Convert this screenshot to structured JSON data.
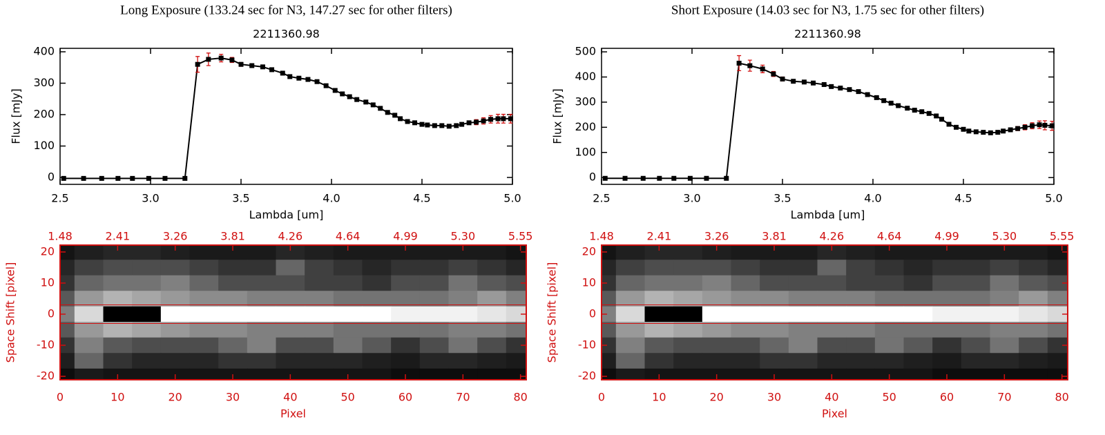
{
  "chart_data": [
    {
      "type": "line",
      "heading": "Long Exposure (133.24 sec for N3, 147.27 sec for other filters)",
      "title": "2211360.98",
      "xlabel": "Lambda [um]",
      "ylabel": "Flux [mJy]",
      "xlim": [
        2.5,
        5.0
      ],
      "ylim": [
        -22,
        411
      ],
      "xticks": [
        2.5,
        {
          "value": 3,
          "label": "3.0"
        },
        3.5,
        {
          "value": 4,
          "label": "4.0"
        },
        4.5,
        {
          "value": 5,
          "label": "5.0"
        }
      ],
      "yticks": [
        0,
        100,
        200,
        300,
        400
      ],
      "x": [
        2.52,
        2.63,
        2.73,
        2.82,
        2.9,
        2.99,
        3.08,
        3.19,
        3.26,
        3.32,
        3.39,
        3.45,
        3.5,
        3.56,
        3.62,
        3.67,
        3.73,
        3.77,
        3.82,
        3.87,
        3.92,
        3.97,
        4.02,
        4.06,
        4.1,
        4.14,
        4.19,
        4.23,
        4.27,
        4.31,
        4.35,
        4.38,
        4.42,
        4.46,
        4.5,
        4.53,
        4.57,
        4.61,
        4.65,
        4.69,
        4.72,
        4.76,
        4.8,
        4.84,
        4.88,
        4.92,
        4.95,
        4.99
      ],
      "series": [
        {
          "color": "#000000",
          "error_color": "#d01010",
          "values": [
            -3,
            -3,
            -3,
            -3,
            -3,
            -3,
            -3,
            -3,
            360,
            376,
            380,
            374,
            360,
            356,
            352,
            343,
            332,
            321,
            316,
            312,
            305,
            292,
            277,
            266,
            257,
            248,
            240,
            231,
            220,
            207,
            198,
            187,
            178,
            174,
            169,
            167,
            165,
            165,
            163,
            165,
            169,
            174,
            176,
            180,
            185,
            187,
            187,
            187
          ],
          "errors": [
            3,
            3,
            3,
            3,
            3,
            3,
            3,
            3,
            25,
            20,
            12,
            8,
            6,
            5,
            5,
            5,
            5,
            5,
            5,
            5,
            5,
            5,
            5,
            5,
            5,
            5,
            5,
            5,
            5,
            5,
            5,
            5,
            5,
            5,
            5,
            5,
            5,
            5,
            5,
            5,
            5,
            5,
            8,
            10,
            12,
            14,
            14,
            14
          ]
        }
      ]
    },
    {
      "type": "heatmap",
      "xlabel": "Pixel",
      "ylabel": "Space Shift [pixel]",
      "color": "#d01010",
      "xlim": [
        0,
        81
      ],
      "ylim": [
        -21.1,
        22.2
      ],
      "xticks": [
        0,
        10,
        20,
        30,
        40,
        50,
        60,
        70,
        80
      ],
      "yticks": [
        -20,
        -10,
        0,
        10,
        20
      ],
      "x2ticks": [
        1.48,
        2.41,
        3.26,
        3.81,
        4.26,
        4.64,
        4.99,
        {
          "value": 5.3,
          "label": "5.30"
        },
        5.55
      ],
      "hlines": [
        3,
        -3
      ],
      "x": [
        0,
        5,
        10,
        15,
        20,
        25,
        30,
        35,
        40,
        45,
        50,
        55,
        60,
        65,
        70,
        75,
        80
      ],
      "y": [
        20,
        15,
        10,
        5,
        0,
        -5,
        -10,
        -15,
        -20
      ],
      "z": [
        [
          0.08,
          0.12,
          0.15,
          0.15,
          0.12,
          0.1,
          0.1,
          0.1,
          0.15,
          0.12,
          0.1,
          0.1,
          0.1,
          0.1,
          0.1,
          0.1,
          0.08
        ],
        [
          0.15,
          0.25,
          0.3,
          0.3,
          0.3,
          0.25,
          0.2,
          0.2,
          0.4,
          0.25,
          0.2,
          0.15,
          0.2,
          0.2,
          0.25,
          0.2,
          0.15
        ],
        [
          0.2,
          0.4,
          0.45,
          0.45,
          0.5,
          0.4,
          0.3,
          0.3,
          0.3,
          0.25,
          0.25,
          0.2,
          0.3,
          0.3,
          0.45,
          0.35,
          0.3
        ],
        [
          0.35,
          0.6,
          0.7,
          0.65,
          0.6,
          0.55,
          0.55,
          0.5,
          0.5,
          0.5,
          0.45,
          0.45,
          0.45,
          0.45,
          0.5,
          0.6,
          0.5
        ],
        [
          0.5,
          0.85,
          0,
          0,
          1,
          1,
          1,
          1,
          1,
          1,
          1,
          1,
          0.95,
          0.95,
          0.95,
          0.9,
          0.85
        ],
        [
          0.35,
          0.6,
          0.7,
          0.65,
          0.6,
          0.55,
          0.55,
          0.5,
          0.5,
          0.5,
          0.45,
          0.45,
          0.45,
          0.45,
          0.5,
          0.5,
          0.45
        ],
        [
          0.2,
          0.5,
          0.35,
          0.3,
          0.3,
          0.3,
          0.4,
          0.5,
          0.3,
          0.3,
          0.45,
          0.35,
          0.2,
          0.3,
          0.45,
          0.3,
          0.2
        ],
        [
          0.12,
          0.4,
          0.2,
          0.15,
          0.15,
          0.15,
          0.2,
          0.2,
          0.15,
          0.15,
          0.15,
          0.12,
          0.1,
          0.15,
          0.15,
          0.12,
          0.1
        ],
        [
          0.05,
          0.1,
          0.08,
          0.08,
          0.08,
          0.08,
          0.08,
          0.08,
          0.08,
          0.08,
          0.08,
          0.08,
          0.05,
          0.05,
          0.05,
          0.05,
          0.05
        ]
      ]
    },
    {
      "type": "line",
      "heading": "Short Exposure (14.03 sec for N3, 1.75 sec for other filters)",
      "title": "2211360.98",
      "xlabel": "Lambda [um]",
      "ylabel": "Flux [mJy]",
      "xlim": [
        2.5,
        5.0
      ],
      "ylim": [
        -27,
        514
      ],
      "xticks": [
        2.5,
        {
          "value": 3,
          "label": "3.0"
        },
        3.5,
        {
          "value": 4,
          "label": "4.0"
        },
        4.5,
        {
          "value": 5,
          "label": "5.0"
        }
      ],
      "yticks": [
        0,
        100,
        200,
        300,
        400,
        500
      ],
      "x": [
        2.52,
        2.63,
        2.73,
        2.82,
        2.9,
        2.99,
        3.08,
        3.19,
        3.26,
        3.32,
        3.39,
        3.45,
        3.5,
        3.56,
        3.62,
        3.67,
        3.73,
        3.77,
        3.82,
        3.87,
        3.92,
        3.97,
        4.02,
        4.06,
        4.1,
        4.14,
        4.19,
        4.23,
        4.27,
        4.31,
        4.35,
        4.38,
        4.42,
        4.46,
        4.5,
        4.53,
        4.57,
        4.61,
        4.65,
        4.69,
        4.72,
        4.76,
        4.8,
        4.84,
        4.88,
        4.92,
        4.95,
        4.99
      ],
      "series": [
        {
          "color": "#000000",
          "error_color": "#d01010",
          "values": [
            -3,
            -3,
            -3,
            -3,
            -3,
            -3,
            -3,
            -3,
            455,
            445,
            432,
            412,
            392,
            383,
            380,
            376,
            370,
            362,
            356,
            350,
            342,
            330,
            318,
            306,
            296,
            286,
            276,
            268,
            262,
            255,
            245,
            232,
            212,
            200,
            192,
            185,
            182,
            180,
            178,
            180,
            185,
            190,
            195,
            200,
            206,
            210,
            208,
            206
          ],
          "errors": [
            3,
            3,
            3,
            3,
            3,
            3,
            3,
            3,
            30,
            22,
            15,
            10,
            8,
            6,
            6,
            6,
            6,
            6,
            6,
            6,
            6,
            6,
            6,
            6,
            6,
            6,
            6,
            6,
            6,
            6,
            6,
            6,
            6,
            6,
            6,
            6,
            6,
            6,
            6,
            6,
            6,
            6,
            8,
            10,
            12,
            15,
            18,
            18
          ]
        }
      ]
    },
    {
      "type": "heatmap",
      "xlabel": "Pixel",
      "ylabel": "Space Shift [pixel]",
      "color": "#d01010",
      "xlim": [
        0,
        81
      ],
      "ylim": [
        -21.1,
        22.2
      ],
      "xticks": [
        0,
        10,
        20,
        30,
        40,
        50,
        60,
        70,
        80
      ],
      "yticks": [
        -20,
        -10,
        0,
        10,
        20
      ],
      "x2ticks": [
        1.48,
        2.41,
        3.26,
        3.81,
        4.26,
        4.64,
        4.99,
        {
          "value": 5.3,
          "label": "5.30"
        },
        5.55
      ],
      "hlines": [
        3,
        -3
      ],
      "x": [
        0,
        5,
        10,
        15,
        20,
        25,
        30,
        35,
        40,
        45,
        50,
        55,
        60,
        65,
        70,
        75,
        80
      ],
      "y": [
        20,
        15,
        10,
        5,
        0,
        -5,
        -10,
        -15,
        -20
      ],
      "z": [
        [
          0.08,
          0.12,
          0.15,
          0.15,
          0.12,
          0.1,
          0.1,
          0.1,
          0.15,
          0.12,
          0.1,
          0.1,
          0.1,
          0.1,
          0.1,
          0.1,
          0.08
        ],
        [
          0.15,
          0.25,
          0.3,
          0.3,
          0.3,
          0.25,
          0.2,
          0.2,
          0.4,
          0.25,
          0.2,
          0.15,
          0.2,
          0.2,
          0.25,
          0.2,
          0.15
        ],
        [
          0.2,
          0.4,
          0.45,
          0.45,
          0.5,
          0.4,
          0.3,
          0.3,
          0.3,
          0.25,
          0.25,
          0.2,
          0.3,
          0.3,
          0.45,
          0.35,
          0.3
        ],
        [
          0.35,
          0.6,
          0.7,
          0.65,
          0.6,
          0.55,
          0.55,
          0.5,
          0.5,
          0.5,
          0.45,
          0.45,
          0.45,
          0.45,
          0.5,
          0.6,
          0.5
        ],
        [
          0.5,
          0.85,
          0,
          0,
          1,
          1,
          1,
          1,
          1,
          1,
          1,
          1,
          0.95,
          0.95,
          0.95,
          0.9,
          0.85
        ],
        [
          0.35,
          0.6,
          0.7,
          0.65,
          0.6,
          0.55,
          0.55,
          0.5,
          0.5,
          0.5,
          0.45,
          0.45,
          0.45,
          0.45,
          0.5,
          0.5,
          0.45
        ],
        [
          0.2,
          0.5,
          0.35,
          0.3,
          0.3,
          0.3,
          0.4,
          0.5,
          0.3,
          0.3,
          0.45,
          0.35,
          0.2,
          0.3,
          0.45,
          0.3,
          0.2
        ],
        [
          0.12,
          0.4,
          0.2,
          0.15,
          0.15,
          0.15,
          0.2,
          0.2,
          0.15,
          0.15,
          0.15,
          0.12,
          0.1,
          0.15,
          0.15,
          0.12,
          0.1
        ],
        [
          0.05,
          0.1,
          0.08,
          0.08,
          0.08,
          0.08,
          0.08,
          0.08,
          0.08,
          0.08,
          0.08,
          0.08,
          0.05,
          0.05,
          0.05,
          0.05,
          0.05
        ]
      ]
    }
  ]
}
